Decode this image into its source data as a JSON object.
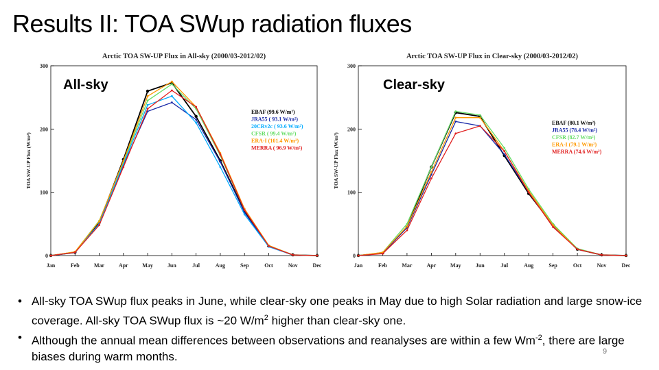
{
  "slide": {
    "title": "Results II: TOA SWup radiation fluxes",
    "page_number": "9"
  },
  "chart_data": [
    {
      "type": "line",
      "title": "Arctic TOA SW-UP Flux in All-sky (2000/03-2012/02)",
      "panel_label": "All-sky",
      "xlabel": "",
      "ylabel": "TOA SW-UP Flux (W/m²)",
      "ylim": [
        0,
        300
      ],
      "yticks": [
        0,
        100,
        200,
        300
      ],
      "categories": [
        "Jan",
        "Feb",
        "Mar",
        "Apr",
        "May",
        "Jun",
        "Jul",
        "Aug",
        "Sep",
        "Oct",
        "Nov",
        "Dec"
      ],
      "series": [
        {
          "name": "EBAF",
          "legend": "EBAF (99.6 W/m²)",
          "color": "#000000",
          "values": [
            0,
            5,
            52,
            152,
            260,
            273,
            220,
            150,
            70,
            15,
            1,
            0
          ]
        },
        {
          "name": "JRA55",
          "legend": "JRA55 ( 93.1 W/m²)",
          "color": "#1a2aa8",
          "values": [
            0,
            5,
            50,
            143,
            228,
            242,
            215,
            148,
            68,
            14,
            1,
            0
          ]
        },
        {
          "name": "20CRv2c",
          "legend": "20CRv2c ( 93.6 W/m²)",
          "color": "#00aaff",
          "values": [
            0,
            5,
            50,
            145,
            238,
            252,
            210,
            140,
            65,
            14,
            1,
            0
          ]
        },
        {
          "name": "CFSR",
          "legend": "CFSR ( 99.4 W/m²)",
          "color": "#66dd66",
          "values": [
            0,
            6,
            55,
            148,
            245,
            271,
            232,
            158,
            72,
            16,
            1,
            0
          ]
        },
        {
          "name": "ERA-I",
          "legend": "ERA-I (101.4 W/m²)",
          "color": "#ff9900",
          "values": [
            0,
            6,
            54,
            150,
            252,
            275,
            235,
            162,
            74,
            16,
            1,
            0
          ]
        },
        {
          "name": "MERRA",
          "legend": "MERRA ( 96.9 W/m²)",
          "color": "#e02020",
          "values": [
            0,
            5,
            48,
            140,
            232,
            261,
            235,
            160,
            72,
            15,
            1,
            0
          ]
        }
      ]
    },
    {
      "type": "line",
      "title": "Arctic TOA SW-UP Flux in Clear-sky  (2000/03-2012/02)",
      "panel_label": "Clear-sky",
      "xlabel": "",
      "ylabel": "TOA SW-UP Flux (W/m²)",
      "ylim": [
        0,
        300
      ],
      "yticks": [
        0,
        100,
        200,
        300
      ],
      "categories": [
        "Jan",
        "Feb",
        "Mar",
        "Apr",
        "May",
        "Jun",
        "Jul",
        "Aug",
        "Sep",
        "Oct",
        "Nov",
        "Dec"
      ],
      "series": [
        {
          "name": "EBAF",
          "legend": "EBAF (80.1 W/m²)",
          "color": "#000000",
          "values": [
            0,
            4,
            45,
            140,
            226,
            220,
            158,
            98,
            48,
            10,
            1,
            0
          ]
        },
        {
          "name": "JRA55",
          "legend": "JRA55 (78.4 W/m²)",
          "color": "#1a2aa8",
          "values": [
            0,
            4,
            44,
            128,
            212,
            205,
            160,
            100,
            47,
            10,
            1,
            0
          ]
        },
        {
          "name": "CFSR",
          "legend": "CFSR (82.7 W/m²)",
          "color": "#66dd66",
          "values": [
            0,
            5,
            50,
            140,
            228,
            222,
            170,
            105,
            50,
            11,
            1,
            0
          ]
        },
        {
          "name": "ERA-I",
          "legend": "ERA-I (79.1 W/m²)",
          "color": "#ff9900",
          "values": [
            0,
            5,
            46,
            132,
            218,
            218,
            165,
            102,
            48,
            10,
            1,
            0
          ]
        },
        {
          "name": "MERRA",
          "legend": "MERRA (74.6 W/m²)",
          "color": "#e02020",
          "values": [
            0,
            3,
            40,
            122,
            193,
            205,
            165,
            100,
            45,
            10,
            1,
            0
          ]
        }
      ]
    }
  ],
  "bullets": [
    {
      "text_a": "All-sky TOA SWup flux peaks in June, while clear-sky one peaks in May due to high Solar radiation and large snow-ice coverage. All-sky TOA SWup flux is ~20 W/m",
      "sup": "2",
      "text_b": " higher than clear-sky one."
    },
    {
      "text_a": "Although the annual mean differences between observations and reanalyses are within a few Wm",
      "sup": "-2",
      "text_b": ", there are large biases during warm months."
    }
  ]
}
